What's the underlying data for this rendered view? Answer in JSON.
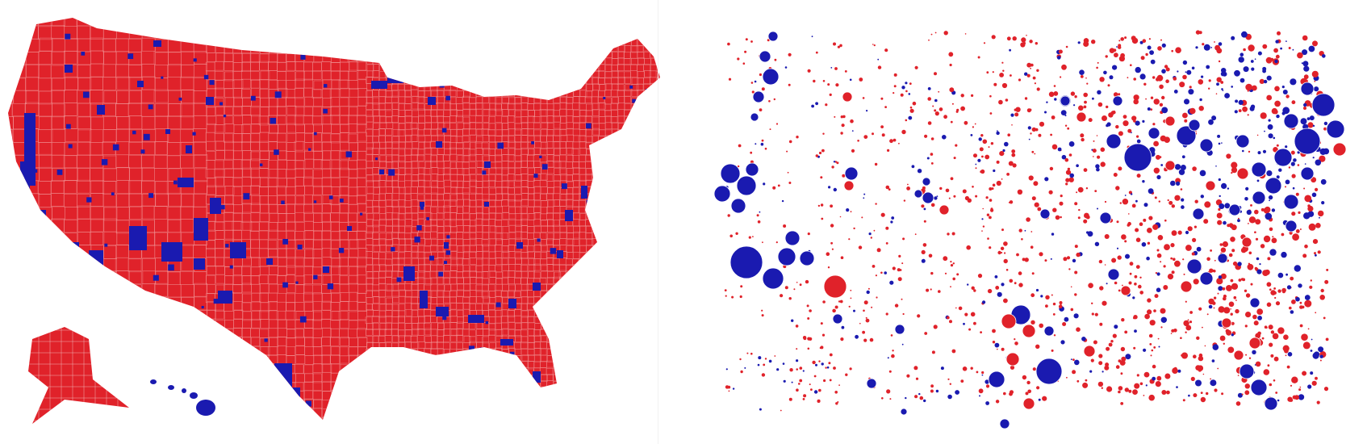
{
  "colors": {
    "republican": "#e0222a",
    "democrat": "#1a1ab0",
    "border": "#f4b0b0",
    "background": "#ffffff"
  },
  "panels": [
    {
      "name": "county-choropleth-map",
      "kind": "choropleth"
    },
    {
      "name": "county-bubble-map",
      "kind": "proportional-bubbles"
    }
  ]
}
